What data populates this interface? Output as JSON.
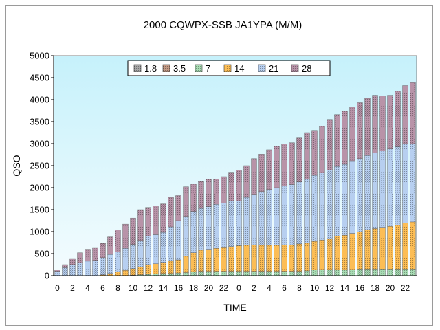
{
  "chart_data": {
    "type": "bar",
    "stacked": true,
    "title": "2000 CQWPX-SSB  JA1YPA (M/M)",
    "xlabel": "TIME",
    "ylabel": "QSO",
    "ylim": [
      0,
      5000
    ],
    "yticks": [
      0,
      500,
      1000,
      1500,
      2000,
      2500,
      3000,
      3500,
      4000,
      4500,
      5000
    ],
    "grid": false,
    "legend_position": "top-center",
    "plot_background": "gradient cyan-to-light",
    "categories": [
      "0",
      "1",
      "2",
      "3",
      "4",
      "5",
      "6",
      "7",
      "8",
      "9",
      "10",
      "11",
      "12",
      "13",
      "14",
      "15",
      "16",
      "17",
      "18",
      "19",
      "20",
      "21",
      "22",
      "23",
      "0",
      "1",
      "2",
      "3",
      "4",
      "5",
      "6",
      "7",
      "8",
      "9",
      "10",
      "11",
      "12",
      "13",
      "14",
      "15",
      "16",
      "17",
      "18",
      "19",
      "20",
      "21",
      "22",
      "23"
    ],
    "series": [
      {
        "name": "1.8",
        "color": "#a6a6a6",
        "values": [
          0,
          0,
          0,
          0,
          0,
          0,
          0,
          0,
          0,
          0,
          0,
          0,
          0,
          0,
          0,
          0,
          0,
          0,
          0,
          0,
          0,
          0,
          0,
          0,
          0,
          0,
          0,
          0,
          0,
          0,
          0,
          0,
          0,
          0,
          0,
          0,
          0,
          0,
          0,
          0,
          0,
          0,
          0,
          0,
          0,
          0,
          0,
          0
        ]
      },
      {
        "name": "3.5",
        "color": "#c39a85",
        "values": [
          0,
          0,
          0,
          0,
          0,
          0,
          0,
          0,
          0,
          0,
          0,
          0,
          0,
          0,
          0,
          0,
          0,
          0,
          0,
          0,
          0,
          0,
          0,
          0,
          0,
          0,
          0,
          0,
          0,
          0,
          0,
          0,
          0,
          0,
          0,
          0,
          0,
          0,
          0,
          0,
          0,
          0,
          0,
          0,
          0,
          0,
          0,
          0
        ]
      },
      {
        "name": "7",
        "color": "#a8dcb4",
        "values": [
          0,
          0,
          0,
          0,
          0,
          0,
          0,
          0,
          0,
          0,
          10,
          20,
          30,
          40,
          50,
          50,
          60,
          70,
          90,
          100,
          100,
          100,
          100,
          100,
          100,
          100,
          100,
          100,
          100,
          100,
          100,
          100,
          100,
          110,
          130,
          140,
          140,
          140,
          140,
          140,
          150,
          150,
          150,
          150,
          150,
          150,
          150,
          150
        ]
      },
      {
        "name": "14",
        "color": "#fcbd55",
        "values": [
          0,
          0,
          0,
          0,
          0,
          0,
          20,
          50,
          90,
          120,
          150,
          180,
          220,
          230,
          250,
          280,
          300,
          380,
          430,
          480,
          500,
          520,
          550,
          560,
          580,
          600,
          600,
          600,
          600,
          600,
          600,
          600,
          620,
          630,
          650,
          670,
          700,
          760,
          780,
          820,
          840,
          890,
          920,
          950,
          970,
          1000,
          1050,
          1070
        ]
      },
      {
        "name": "21",
        "color": "#b7cff0",
        "values": [
          100,
          180,
          250,
          290,
          330,
          350,
          390,
          430,
          450,
          500,
          550,
          600,
          650,
          660,
          680,
          780,
          890,
          900,
          940,
          950,
          970,
          1000,
          1000,
          1030,
          1020,
          1080,
          1150,
          1210,
          1260,
          1300,
          1340,
          1370,
          1410,
          1460,
          1500,
          1530,
          1560,
          1580,
          1610,
          1650,
          1670,
          1690,
          1720,
          1740,
          1760,
          1780,
          1800,
          1780
        ]
      },
      {
        "name": "28",
        "color": "#b893a8",
        "values": [
          30,
          70,
          140,
          230,
          270,
          290,
          320,
          400,
          500,
          550,
          600,
          700,
          650,
          660,
          650,
          670,
          570,
          670,
          620,
          610,
          620,
          580,
          600,
          660,
          700,
          720,
          810,
          850,
          900,
          950,
          950,
          950,
          1000,
          1050,
          1020,
          1060,
          1150,
          1180,
          1210,
          1220,
          1270,
          1300,
          1310,
          1250,
          1220,
          1270,
          1320,
          1400
        ]
      }
    ]
  }
}
